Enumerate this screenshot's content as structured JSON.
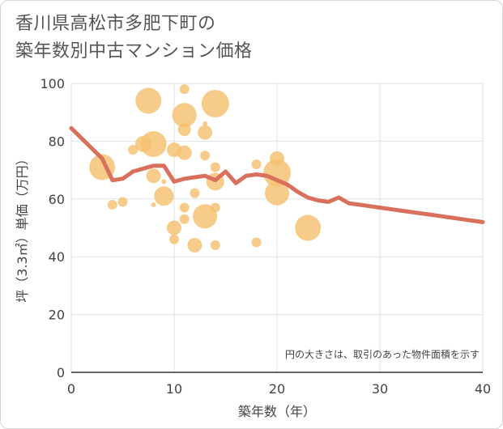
{
  "title_lines": [
    "香川県高松市多肥下町の",
    "築年数別中古マンション価格"
  ],
  "chart_data": {
    "type": "scatter",
    "xlabel": "築年数（年）",
    "ylabel": "坪（3.3㎡）単価（万円）",
    "xlim": [
      0,
      40
    ],
    "ylim": [
      0,
      100
    ],
    "xticks": [
      0,
      10,
      20,
      30,
      40
    ],
    "yticks": [
      0,
      20,
      40,
      60,
      80,
      100
    ],
    "grid": true,
    "note": "円の大きさは、取引のあった物件面積を示す",
    "bubble_color": "#f5c170",
    "line_color": "#d9705c",
    "bubbles": [
      {
        "x": 3,
        "y": 71,
        "s": 16
      },
      {
        "x": 4,
        "y": 58,
        "s": 6
      },
      {
        "x": 5,
        "y": 59,
        "s": 6
      },
      {
        "x": 6,
        "y": 77,
        "s": 6
      },
      {
        "x": 7,
        "y": 79,
        "s": 10
      },
      {
        "x": 7.5,
        "y": 94,
        "s": 16
      },
      {
        "x": 8,
        "y": 79,
        "s": 16
      },
      {
        "x": 8,
        "y": 68,
        "s": 9
      },
      {
        "x": 8,
        "y": 58,
        "s": 3
      },
      {
        "x": 9,
        "y": 66,
        "s": 3
      },
      {
        "x": 9,
        "y": 61,
        "s": 12
      },
      {
        "x": 10,
        "y": 77,
        "s": 9
      },
      {
        "x": 10,
        "y": 50,
        "s": 9
      },
      {
        "x": 10,
        "y": 46,
        "s": 6
      },
      {
        "x": 11,
        "y": 98,
        "s": 6
      },
      {
        "x": 11,
        "y": 89,
        "s": 15
      },
      {
        "x": 11,
        "y": 84,
        "s": 8
      },
      {
        "x": 11,
        "y": 76,
        "s": 9
      },
      {
        "x": 11,
        "y": 57,
        "s": 6
      },
      {
        "x": 11,
        "y": 53,
        "s": 6
      },
      {
        "x": 12,
        "y": 62,
        "s": 6
      },
      {
        "x": 12,
        "y": 44,
        "s": 9
      },
      {
        "x": 13,
        "y": 86,
        "s": 3
      },
      {
        "x": 13,
        "y": 83,
        "s": 9
      },
      {
        "x": 13,
        "y": 75,
        "s": 6
      },
      {
        "x": 13,
        "y": 54,
        "s": 15
      },
      {
        "x": 14,
        "y": 93,
        "s": 17
      },
      {
        "x": 14,
        "y": 71,
        "s": 6
      },
      {
        "x": 14,
        "y": 66,
        "s": 11
      },
      {
        "x": 14,
        "y": 57,
        "s": 6
      },
      {
        "x": 14,
        "y": 44,
        "s": 6
      },
      {
        "x": 18,
        "y": 72,
        "s": 6
      },
      {
        "x": 18,
        "y": 45,
        "s": 6
      },
      {
        "x": 20,
        "y": 74,
        "s": 9
      },
      {
        "x": 20,
        "y": 69,
        "s": 17
      },
      {
        "x": 20,
        "y": 62,
        "s": 15
      },
      {
        "x": 23,
        "y": 50,
        "s": 16
      }
    ],
    "line": {
      "x": [
        0,
        1,
        2,
        3,
        4,
        5,
        6,
        7,
        8,
        9,
        10,
        11,
        12,
        13,
        14,
        15,
        16,
        17,
        18,
        19,
        20,
        21,
        22,
        23,
        24,
        25,
        26,
        27,
        28,
        29,
        30,
        31,
        32,
        33,
        34,
        35,
        36,
        37,
        38,
        39,
        40
      ],
      "y": [
        84.5,
        81,
        77.5,
        74,
        66.5,
        67,
        69.5,
        70.5,
        71.5,
        71.5,
        66,
        67,
        67.5,
        68,
        66.5,
        69.5,
        65.5,
        68,
        68.5,
        68,
        66.5,
        65,
        62.5,
        60.5,
        59.5,
        59,
        60.5,
        58.5,
        58,
        57.5,
        57,
        56.5,
        56,
        55.5,
        55,
        54.5,
        54,
        53.5,
        53,
        52.5,
        52
      ]
    }
  }
}
